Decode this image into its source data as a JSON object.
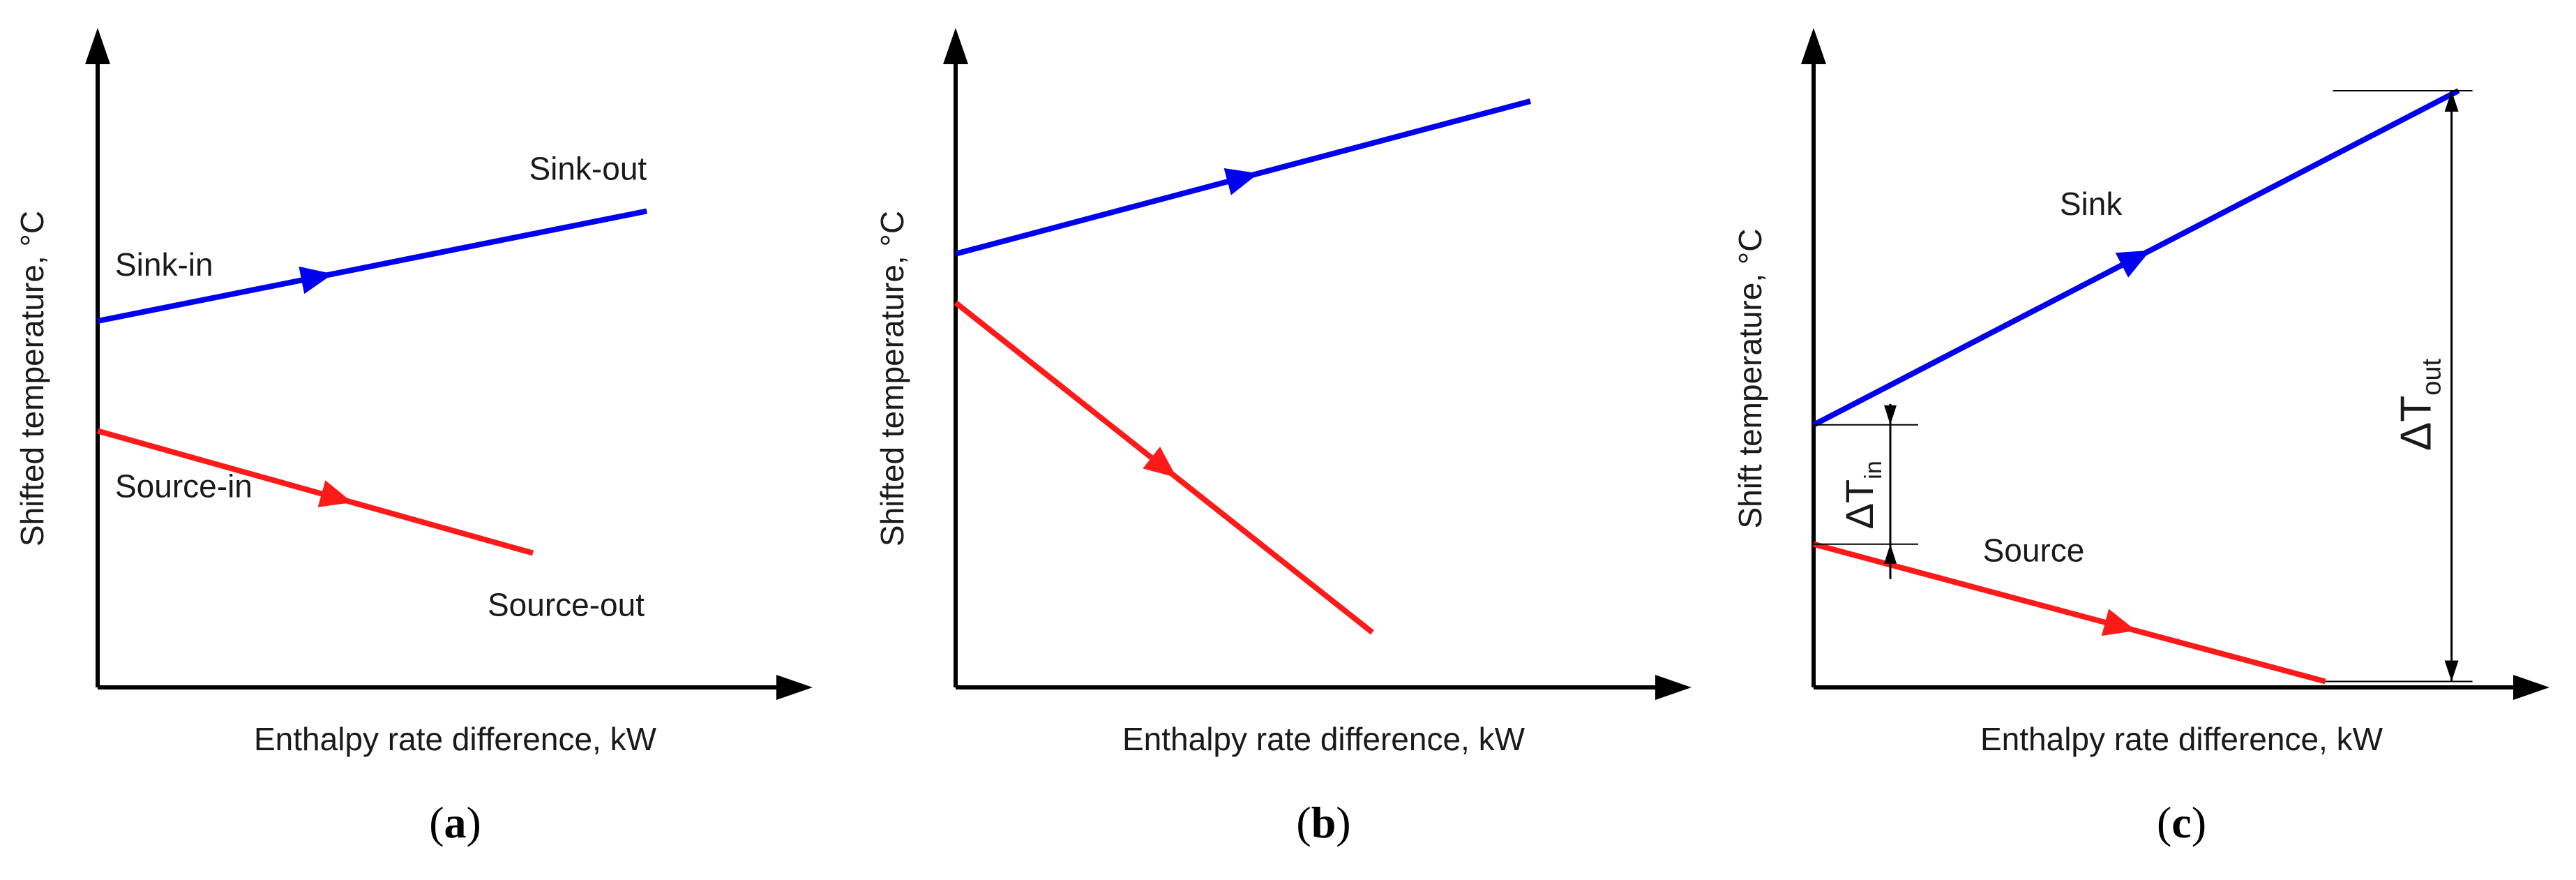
{
  "chart_data": [
    {
      "id": "a",
      "type": "line",
      "caption": "a",
      "xlabel": "Enthalpy rate difference, kW",
      "ylabel": "Shifted temperature, °C",
      "xlim": [
        0,
        100
      ],
      "ylim": [
        0,
        100
      ],
      "series": [
        {
          "name": "sink",
          "color": "#0000ee",
          "x": [
            0,
            82
          ],
          "y": [
            60,
            78
          ],
          "arrow_at": 0.4,
          "labels": [
            {
              "text": "Sink-in",
              "pos": "start-above"
            },
            {
              "text": "Sink-out",
              "pos": "end-above"
            }
          ]
        },
        {
          "name": "source",
          "color": "#ff1a1a",
          "x": [
            0,
            65
          ],
          "y": [
            42,
            22
          ],
          "arrow_at": 0.55,
          "labels": [
            {
              "text": "Source-in",
              "pos": "start-below"
            },
            {
              "text": "Source-out",
              "pos": "end-below"
            }
          ]
        }
      ]
    },
    {
      "id": "b",
      "type": "line",
      "caption": "b",
      "xlabel": "Enthalpy rate difference, kW",
      "ylabel": "Shifted temperature, °C",
      "xlim": [
        0,
        100
      ],
      "ylim": [
        0,
        100
      ],
      "series": [
        {
          "name": "sink",
          "color": "#0000ee",
          "x": [
            0,
            80
          ],
          "y": [
            71,
            96
          ],
          "arrow_at": 0.5,
          "labels": []
        },
        {
          "name": "source",
          "color": "#ff1a1a",
          "x": [
            0,
            58
          ],
          "y": [
            63,
            9
          ],
          "arrow_at": 0.5,
          "labels": []
        }
      ]
    },
    {
      "id": "c",
      "type": "line",
      "caption": "c",
      "xlabel": "Enthalpy rate difference, kW",
      "ylabel": "Shift temperature, °C",
      "xlim": [
        0,
        100
      ],
      "ylim": [
        0,
        100
      ],
      "series": [
        {
          "name": "sink",
          "color": "#0000ee",
          "x": [
            0,
            92
          ],
          "y": [
            44,
            100
          ],
          "arrow_at": 0.5,
          "labels": [
            {
              "text": "Sink",
              "pos": "mid-above"
            }
          ]
        },
        {
          "name": "source",
          "color": "#ff1a1a",
          "x": [
            0,
            73
          ],
          "y": [
            24,
            1
          ],
          "arrow_at": 0.6,
          "labels": [
            {
              "text": "Source",
              "pos": "mid-above"
            }
          ]
        }
      ],
      "annotations": [
        {
          "name": "delta-t-in",
          "symbol": "ΔT",
          "sub": "in",
          "between": [
            "sink-start",
            "source-start"
          ]
        },
        {
          "name": "delta-t-out",
          "symbol": "ΔT",
          "sub": "out",
          "between": [
            "sink-end",
            "source-end"
          ]
        }
      ]
    }
  ]
}
